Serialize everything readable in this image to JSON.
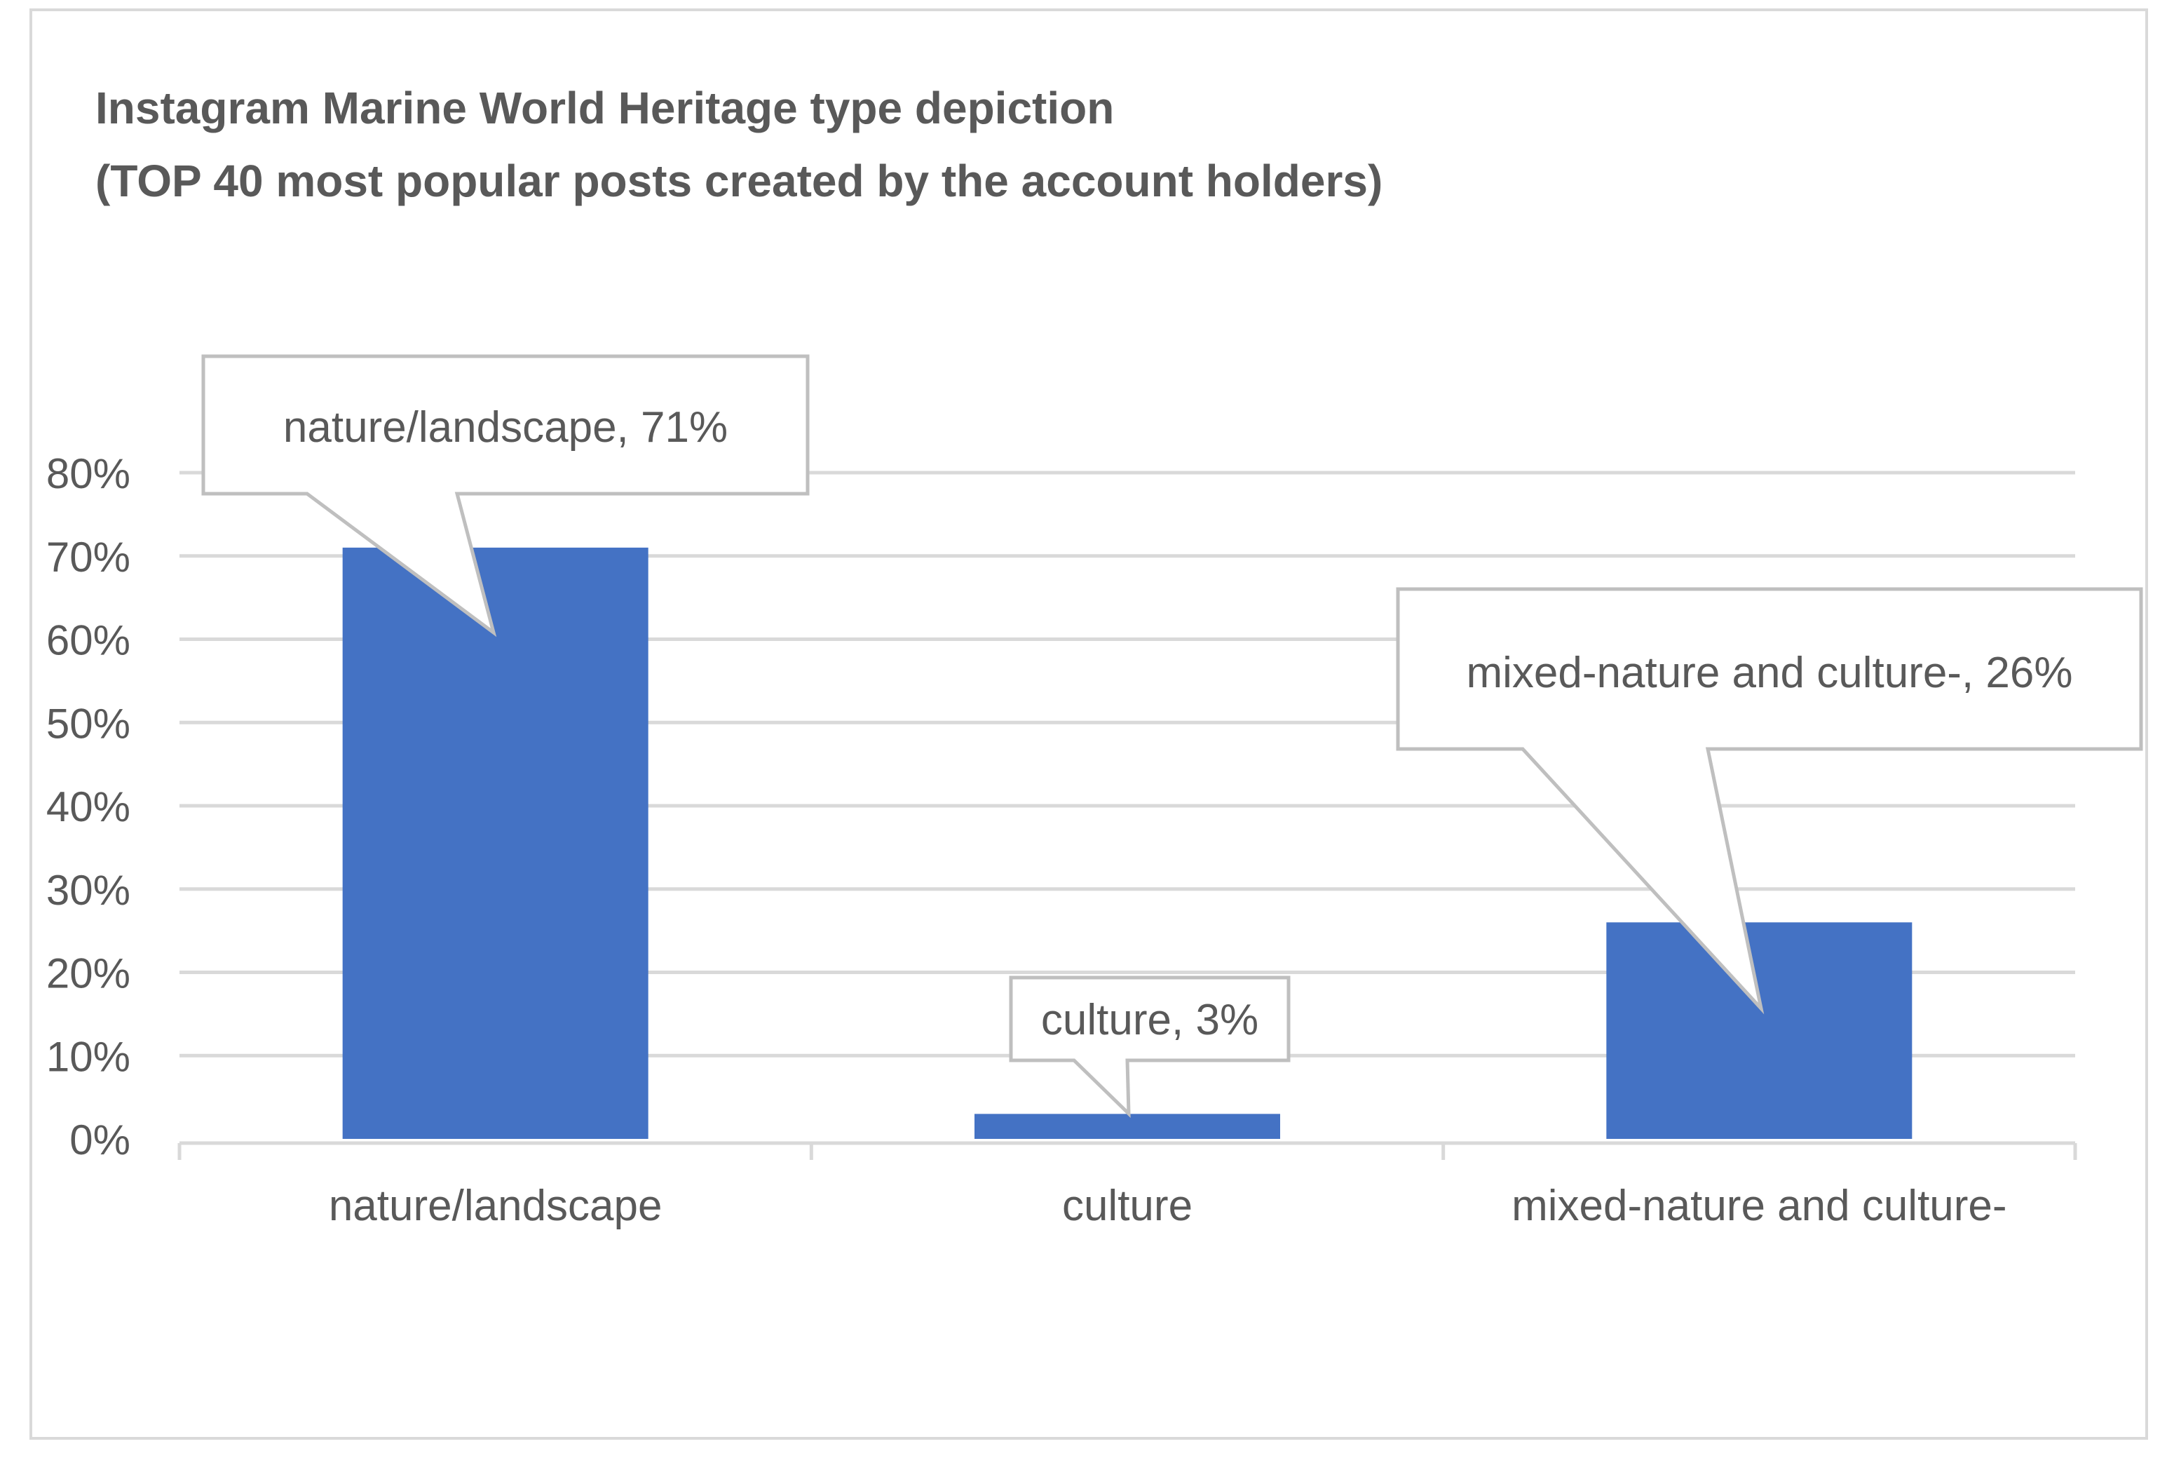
{
  "chart_data": {
    "type": "bar",
    "title": "Instagram Marine World Heritage type depiction",
    "subtitle": "(TOP 40 most popular posts created by the account holders)",
    "categories": [
      "nature/landscape",
      "culture",
      "mixed-nature and culture-"
    ],
    "values": [
      71,
      3,
      26
    ],
    "value_unit": "%",
    "data_labels": [
      "nature/landscape, 71%",
      "culture, 3%",
      "mixed-nature and culture-, 26%"
    ],
    "yticks": [
      "0%",
      "10%",
      "20%",
      "30%",
      "40%",
      "50%",
      "60%",
      "70%",
      "80%"
    ],
    "ylim": [
      0,
      80
    ],
    "grid": true,
    "legend": "none",
    "xlabel": "",
    "ylabel": "",
    "colors": {
      "bar": "#4472C4",
      "grid": "#D9D9D9",
      "text": "#595959",
      "callout_border": "#BFBFBF",
      "frame": "#D9D9D9"
    }
  }
}
